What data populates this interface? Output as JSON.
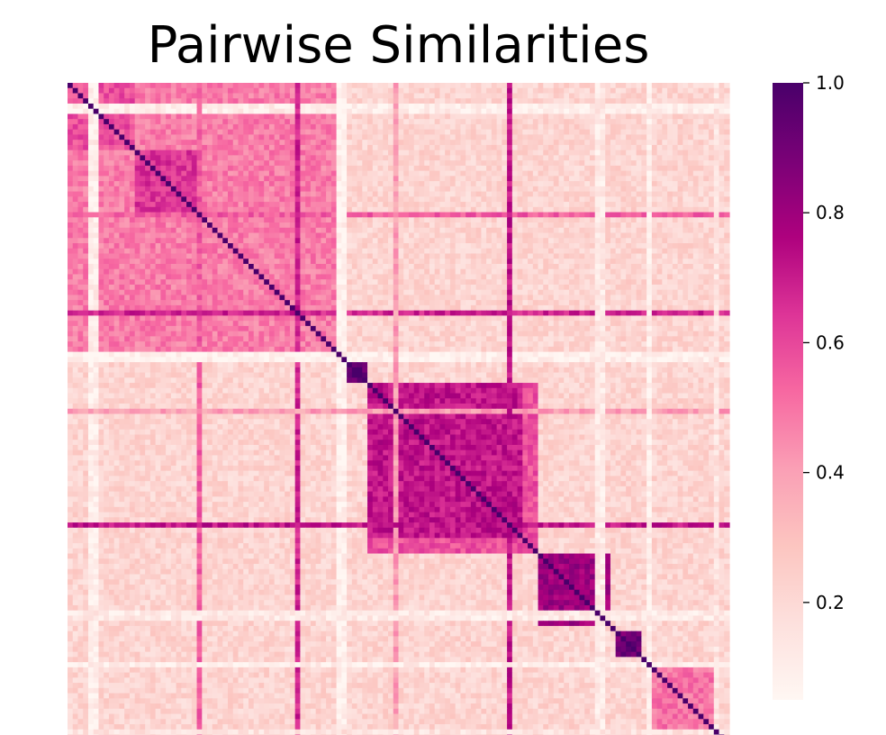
{
  "chart_data": {
    "type": "heatmap",
    "title": "Pairwise Similarities",
    "xlabel": "",
    "ylabel": "",
    "n": 128,
    "diagonal_value": 1.0,
    "blocks": [
      {
        "from": 0,
        "to": 52,
        "value": 0.48
      },
      {
        "from": 0,
        "to": 13,
        "value": 0.58
      },
      {
        "from": 13,
        "to": 25,
        "value": 0.64
      },
      {
        "from": 54,
        "to": 58,
        "value": 0.95
      },
      {
        "from": 58,
        "to": 91,
        "value": 0.58
      },
      {
        "from": 58,
        "to": 88,
        "value": 0.72
      },
      {
        "from": 91,
        "to": 105,
        "value": 0.8
      },
      {
        "from": 106,
        "to": 111,
        "value": 0.9
      },
      {
        "from": 113,
        "to": 126,
        "value": 0.5
      }
    ],
    "off_block_value": 0.22,
    "outlier_rows": [
      {
        "index": 4,
        "value": 0.1
      },
      {
        "index": 5,
        "value": 0.1
      },
      {
        "index": 25,
        "value": 0.55
      },
      {
        "index": 44,
        "value": 0.68
      },
      {
        "index": 52,
        "value": 0.08
      },
      {
        "index": 53,
        "value": 0.08
      },
      {
        "index": 63,
        "value": 0.4
      },
      {
        "index": 85,
        "value": 0.72
      },
      {
        "index": 102,
        "value": 0.12
      },
      {
        "index": 103,
        "value": 0.12
      },
      {
        "index": 112,
        "value": 0.1
      },
      {
        "index": 125,
        "value": 0.15
      }
    ],
    "colorbar": {
      "min": 0.05,
      "max": 1.0,
      "ticks": [
        0.2,
        0.4,
        0.6,
        0.8,
        1.0
      ],
      "tick_labels": [
        "0.2",
        "0.4",
        "0.6",
        "0.8",
        "1.0"
      ],
      "colormap": "RdPu",
      "colors": [
        "#fff7f3",
        "#fde0dd",
        "#fcc5c0",
        "#fa9fb5",
        "#f768a1",
        "#dd3497",
        "#ae017e",
        "#7a0177",
        "#49006a"
      ]
    },
    "grid": false,
    "legend": "colorbar-right"
  }
}
